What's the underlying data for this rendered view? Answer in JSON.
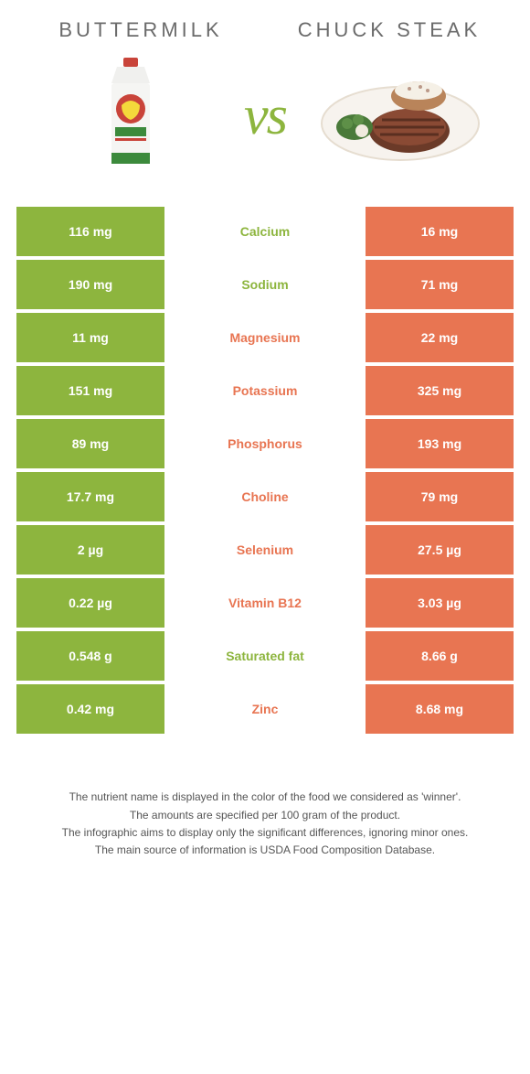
{
  "colors": {
    "green": "#8db53e",
    "orange": "#e87552",
    "textGrey": "#6b6b6b"
  },
  "left": {
    "title": "BUTTERMILK"
  },
  "right": {
    "title": "CHUCK STEAK"
  },
  "vs_label": "vs",
  "rows": [
    {
      "nutrient": "Calcium",
      "left": "116 mg",
      "right": "16 mg",
      "winner": "left"
    },
    {
      "nutrient": "Sodium",
      "left": "190 mg",
      "right": "71 mg",
      "winner": "left"
    },
    {
      "nutrient": "Magnesium",
      "left": "11 mg",
      "right": "22 mg",
      "winner": "right"
    },
    {
      "nutrient": "Potassium",
      "left": "151 mg",
      "right": "325 mg",
      "winner": "right"
    },
    {
      "nutrient": "Phosphorus",
      "left": "89 mg",
      "right": "193 mg",
      "winner": "right"
    },
    {
      "nutrient": "Choline",
      "left": "17.7 mg",
      "right": "79 mg",
      "winner": "right"
    },
    {
      "nutrient": "Selenium",
      "left": "2 µg",
      "right": "27.5 µg",
      "winner": "right"
    },
    {
      "nutrient": "Vitamin B12",
      "left": "0.22 µg",
      "right": "3.03 µg",
      "winner": "right"
    },
    {
      "nutrient": "Saturated fat",
      "left": "0.548 g",
      "right": "8.66 g",
      "winner": "left"
    },
    {
      "nutrient": "Zinc",
      "left": "0.42 mg",
      "right": "8.68 mg",
      "winner": "right"
    }
  ],
  "footer_lines": [
    "The nutrient name is displayed in the color of the food we considered as 'winner'.",
    "The amounts are specified per 100 gram of the product.",
    "The infographic aims to display only the significant differences, ignoring minor ones.",
    "The main source of information is USDA Food Composition Database."
  ]
}
